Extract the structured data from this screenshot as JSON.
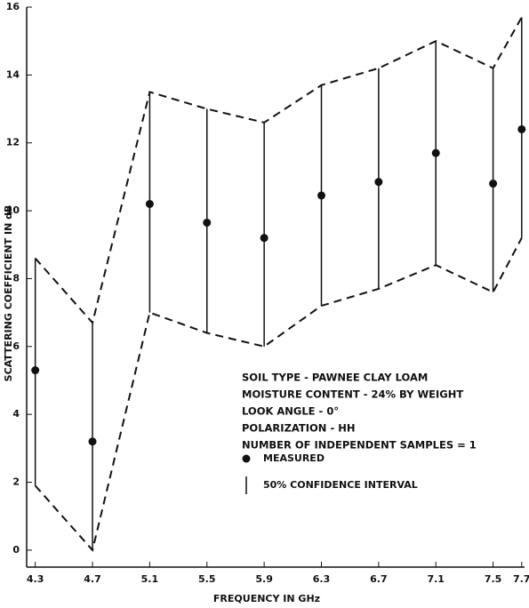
{
  "chart_data": {
    "type": "scatter",
    "xlabel": "FREQUENCY IN GHz",
    "ylabel": "SCATTERING COEFFICIENT IN dB",
    "x": [
      4.3,
      4.7,
      5.1,
      5.5,
      5.9,
      6.3,
      6.7,
      7.1,
      7.5,
      7.7
    ],
    "series": [
      {
        "name": "MEASURED",
        "color": "#111111",
        "values": [
          5.3,
          3.2,
          10.2,
          9.65,
          9.2,
          10.45,
          10.85,
          11.7,
          10.8,
          12.4
        ]
      },
      {
        "name": "50% CONFIDENCE INTERVAL",
        "color": "#111111",
        "upper": [
          8.6,
          6.7,
          13.5,
          13.0,
          12.6,
          13.7,
          14.2,
          15.0,
          14.2,
          15.7
        ],
        "lower": [
          1.9,
          0.0,
          7.0,
          6.4,
          6.0,
          7.2,
          7.7,
          8.4,
          7.6,
          9.2
        ]
      }
    ],
    "annotations": [
      "SOIL TYPE - PAWNEE CLAY LOAM",
      "MOISTURE CONTENT - 24% BY WEIGHT",
      "LOOK ANGLE - 0°",
      "POLARIZATION - HH",
      "NUMBER OF INDEPENDENT SAMPLES = 1"
    ],
    "xlim": [
      4.24,
      7.72
    ],
    "xticks": [
      4.3,
      4.7,
      5.1,
      5.5,
      5.9,
      6.3,
      6.7,
      7.1,
      7.5,
      7.7
    ],
    "ylim": [
      -0.5,
      16
    ],
    "yticks": [
      0,
      2,
      4,
      6,
      8,
      10,
      12,
      14,
      16
    ]
  }
}
